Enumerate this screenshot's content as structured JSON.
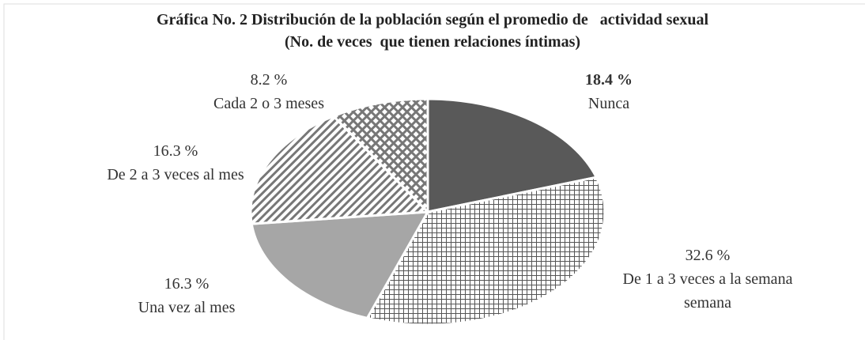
{
  "chart_data": {
    "type": "pie",
    "title": "Gráfica No. 2 Distribución de la población según el promedio de   actividad sexual",
    "subtitle": "(No. de veces  que tienen relaciones íntimas)",
    "categories": [
      "Nunca",
      "De 1 a 3 veces a la semana semana",
      "Una vez al mes",
      "De 2 a 3 veces al mes",
      "Cada 2 o 3 meses"
    ],
    "values": [
      18.4,
      32.6,
      16.3,
      16.3,
      8.2
    ],
    "value_labels": [
      "18.4 %",
      "32.6 %",
      "16.3 %",
      "16.3 %",
      "8.2 %"
    ]
  }
}
